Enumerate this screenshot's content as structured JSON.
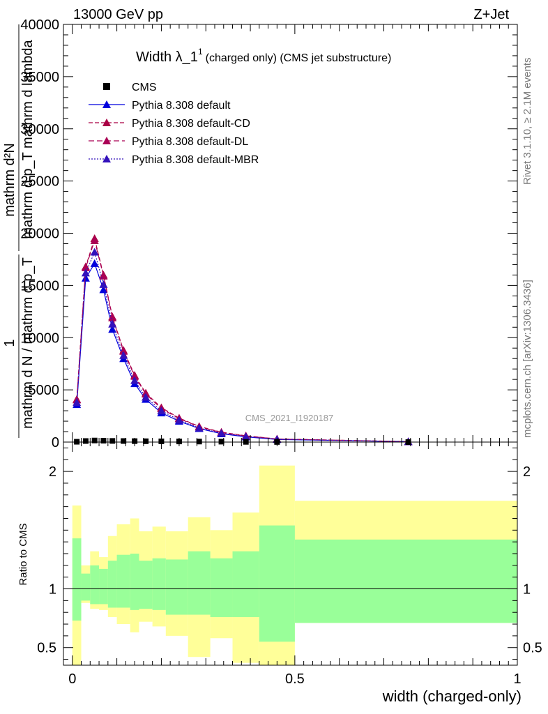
{
  "header": {
    "energy": "13000 GeV pp",
    "process": "Z+Jet"
  },
  "side_labels": {
    "rivet": "Rivet 3.1.10, ≥ 2.1M events",
    "mcplots": "mcplots.cern.ch [arXiv:1306.3436]"
  },
  "chart_data": [
    {
      "type": "line",
      "title": "Width λ_1",
      "title_sup": "1",
      "title_suffix": "(charged only) (CMS jet substructure)",
      "ylabel_lines": [
        "mathrm d²N",
        "mathrm d p_T mathrm d lambda",
        "1",
        "mathrm d N / mathrm d p_T"
      ],
      "watermark": "CMS_2021_I1920187",
      "xlim": [
        -0.02,
        1.0
      ],
      "ylim": [
        0,
        40000
      ],
      "yticks": [
        0,
        5000,
        10000,
        15000,
        20000,
        25000,
        30000,
        35000,
        40000
      ],
      "ytick_labels": [
        "0",
        "5000",
        "10000",
        "15000",
        "20000",
        "25000",
        "30000",
        "35000",
        "40000"
      ],
      "legend": [
        "CMS",
        "Pythia 8.308 default",
        "Pythia 8.308 default-CD",
        "Pythia 8.308 default-DL",
        "Pythia 8.308 default-MBR"
      ],
      "legend_position": "top-left",
      "x": [
        0.01,
        0.03,
        0.05,
        0.07,
        0.09,
        0.115,
        0.14,
        0.165,
        0.2,
        0.24,
        0.285,
        0.335,
        0.39,
        0.46,
        0.755
      ],
      "series": [
        {
          "name": "CMS",
          "color": "#000000",
          "marker": "square",
          "values": [
            30,
            100,
            150,
            130,
            110,
            100,
            90,
            80,
            70,
            60,
            50,
            40,
            20,
            10,
            2
          ]
        },
        {
          "name": "Pythia 8.308 default",
          "color": "#0000dd",
          "marker": "triangle",
          "dash": "none",
          "values": [
            3600,
            15700,
            17100,
            14600,
            10800,
            8000,
            5600,
            4100,
            2800,
            2000,
            1300,
            800,
            500,
            250,
            40
          ]
        },
        {
          "name": "Pythia 8.308 default-CD",
          "color": "#aa0044",
          "marker": "triangle",
          "dash": "6,3",
          "values": [
            4100,
            16800,
            19500,
            16000,
            12000,
            8800,
            6400,
            4700,
            3300,
            2300,
            1500,
            950,
            600,
            300,
            45
          ]
        },
        {
          "name": "Pythia 8.308 default-DL",
          "color": "#aa0055",
          "marker": "triangle",
          "dash": "8,4",
          "values": [
            4050,
            16700,
            19300,
            15900,
            11900,
            8700,
            6300,
            4600,
            3200,
            2250,
            1450,
            920,
            580,
            290,
            45
          ]
        },
        {
          "name": "Pythia 8.308 default-MBR",
          "color": "#3311bb",
          "marker": "triangle",
          "dash": "2,2",
          "values": [
            3800,
            16200,
            18200,
            15100,
            11300,
            8300,
            5900,
            4300,
            3000,
            2100,
            1350,
            850,
            530,
            270,
            42
          ]
        }
      ]
    },
    {
      "type": "area",
      "ylabel": "Ratio to CMS",
      "xlabel": "width (charged-only)",
      "ylim": [
        0.35,
        2.25
      ],
      "yticks": [
        0.5,
        1,
        2
      ],
      "ytick_labels": [
        "0.5",
        "1",
        "2"
      ],
      "xticks": [
        0,
        0.5,
        1
      ],
      "xtick_labels": [
        "0",
        "0.5",
        "1"
      ],
      "reference_line": 1,
      "bin_edges": [
        0,
        0.02,
        0.04,
        0.06,
        0.08,
        0.1,
        0.13,
        0.15,
        0.18,
        0.21,
        0.26,
        0.31,
        0.36,
        0.42,
        0.5,
        1.0
      ],
      "inner_band": {
        "name": "stat",
        "color": "#99ff99",
        "low": [
          0.73,
          0.9,
          0.87,
          0.87,
          0.84,
          0.84,
          0.82,
          0.83,
          0.82,
          0.78,
          0.78,
          0.76,
          0.76,
          0.55,
          0.71
        ],
        "high": [
          1.43,
          1.13,
          1.2,
          1.17,
          1.24,
          1.29,
          1.3,
          1.24,
          1.26,
          1.25,
          1.32,
          1.26,
          1.32,
          1.54,
          1.42
        ]
      },
      "outer_band": {
        "name": "total",
        "color": "#ffff99",
        "low": [
          0.35,
          0.88,
          0.83,
          0.82,
          0.76,
          0.7,
          0.63,
          0.72,
          0.68,
          0.6,
          0.42,
          0.58,
          0.37,
          0.35,
          0.71
        ],
        "high": [
          1.71,
          1.2,
          1.32,
          1.27,
          1.45,
          1.55,
          1.6,
          1.49,
          1.53,
          1.49,
          1.61,
          1.5,
          1.65,
          2.05,
          1.75
        ]
      }
    }
  ]
}
